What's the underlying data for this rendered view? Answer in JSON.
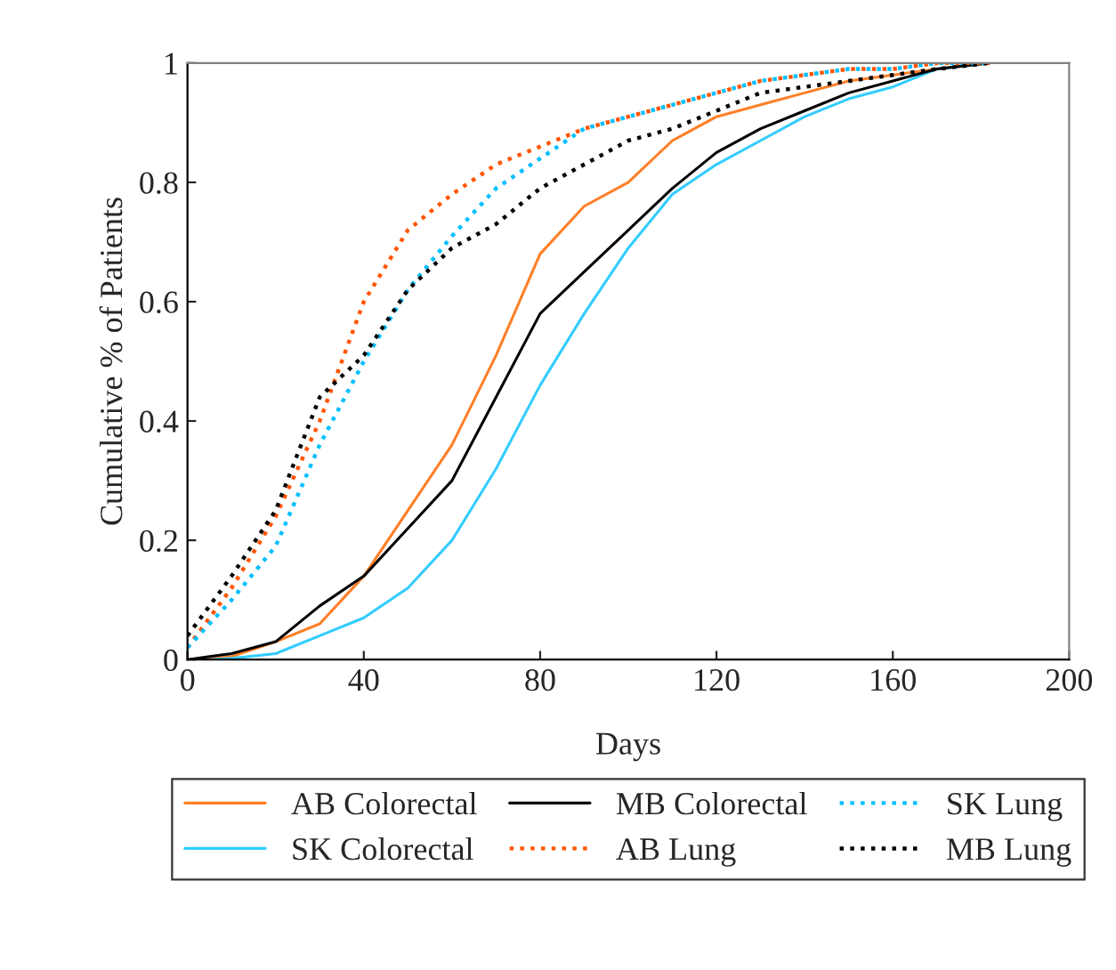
{
  "chart_data": {
    "type": "line",
    "xlabel": "Days",
    "ylabel": "Cumulative % of Patients",
    "x": [
      0,
      5,
      10,
      20,
      30,
      40,
      50,
      60,
      70,
      80,
      90,
      100,
      110,
      120,
      130,
      140,
      150,
      160,
      170,
      182
    ],
    "series": [
      {
        "name": "AB Colorectal",
        "color": "#ff7f27",
        "line_style": "solid",
        "values": [
          0,
          0.002,
          0.005,
          0.03,
          0.06,
          0.14,
          0.25,
          0.36,
          0.51,
          0.68,
          0.76,
          0.8,
          0.87,
          0.91,
          0.93,
          0.95,
          0.97,
          0.98,
          0.99,
          1
        ]
      },
      {
        "name": "SK Colorectal",
        "color": "#33ccff",
        "line_style": "solid",
        "values": [
          0,
          0,
          0.002,
          0.01,
          0.04,
          0.07,
          0.12,
          0.2,
          0.32,
          0.46,
          0.58,
          0.69,
          0.78,
          0.83,
          0.87,
          0.91,
          0.94,
          0.96,
          0.99,
          1
        ]
      },
      {
        "name": "MB Colorectal",
        "color": "#000000",
        "line_style": "solid",
        "values": [
          0,
          0.005,
          0.01,
          0.03,
          0.09,
          0.14,
          0.22,
          0.3,
          0.44,
          0.58,
          0.65,
          0.72,
          0.79,
          0.85,
          0.89,
          0.92,
          0.95,
          0.97,
          0.99,
          1
        ]
      },
      {
        "name": "AB Lung",
        "color": "#ff5500",
        "line_style": "dotted",
        "values": [
          0.02,
          0.07,
          0.12,
          0.24,
          0.4,
          0.6,
          0.72,
          0.78,
          0.83,
          0.86,
          0.89,
          0.91,
          0.93,
          0.95,
          0.97,
          0.98,
          0.99,
          0.99,
          1,
          1
        ]
      },
      {
        "name": "SK Lung",
        "color": "#00bfff",
        "line_style": "dotted",
        "values": [
          0.02,
          0.06,
          0.1,
          0.19,
          0.36,
          0.5,
          0.62,
          0.71,
          0.79,
          0.84,
          0.89,
          0.91,
          0.93,
          0.95,
          0.97,
          0.98,
          0.99,
          0.99,
          1,
          1
        ]
      },
      {
        "name": "MB Lung",
        "color": "#000000",
        "line_style": "dotted",
        "values": [
          0.04,
          0.09,
          0.14,
          0.25,
          0.44,
          0.51,
          0.62,
          0.69,
          0.73,
          0.79,
          0.83,
          0.87,
          0.89,
          0.92,
          0.95,
          0.96,
          0.97,
          0.98,
          0.99,
          1
        ]
      }
    ],
    "xlim": [
      0,
      200
    ],
    "xticks": [
      0,
      40,
      80,
      120,
      160,
      200
    ],
    "ylim": [
      0,
      1
    ],
    "yticks": [
      0,
      0.2,
      0.4,
      0.6,
      0.8,
      1
    ],
    "grid": false,
    "legend": "bottom"
  }
}
